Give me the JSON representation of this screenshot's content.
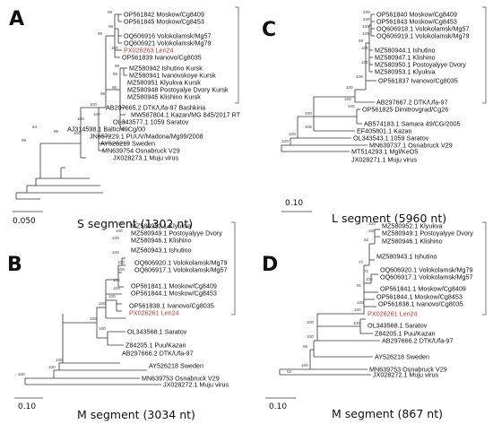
{
  "panels": [
    {
      "id": "A",
      "letter": "A",
      "title": "S segment (1302 nt)",
      "scale": "0.050",
      "taxa": [
        {
          "label": "OP561842 Moskow/Cg8409",
          "hl": false
        },
        {
          "label": "OP561845 Moskow/Cg8453",
          "hl": false
        },
        {
          "label": "OQ606916 Volokolamsk/Mg57",
          "hl": false
        },
        {
          "label": "OQ606921 Volokolamsk/Mg79",
          "hl": false
        },
        {
          "label": "PX026263 Len24",
          "hl": true
        },
        {
          "label": "OP561839 Ivanovo/Cg8035",
          "hl": false
        },
        {
          "label": "MZ580942 Ishutino Kursk",
          "hl": false
        },
        {
          "label": "MZ580941 Ivanovskoye Kursk",
          "hl": false
        },
        {
          "label": "MZ580951 Klyukva Kursk",
          "hl": false
        },
        {
          "label": "MZ580948 Postoyalye Dvory Kursk",
          "hl": false
        },
        {
          "label": "MZ580945 Klishino Kursk",
          "hl": false
        },
        {
          "label": "AB297665.2 DTK/Ufa-97 Bashkiria",
          "hl": false
        },
        {
          "label": "MW587804.1 Kazan/MG 845/2017 RT",
          "hl": false
        },
        {
          "label": "OL343577.1 1059 Saratov",
          "hl": false
        },
        {
          "label": "AJ314598.1 Baltic/49Cg/00",
          "hl": false
        },
        {
          "label": "JN657229.1 PUUV/Madona/Mg99/2008",
          "hl": false
        },
        {
          "label": "AY526219 Sweden",
          "hl": false
        },
        {
          "label": "MN639754 Osnabruck V29",
          "hl": false
        },
        {
          "label": "JX028273.1 Muju virus",
          "hl": false
        }
      ],
      "bootstraps": [
        "99",
        "99",
        "99",
        "100",
        "99",
        "99",
        "95",
        "99",
        "100",
        "100",
        "100",
        "100",
        "86",
        "64",
        "99"
      ]
    },
    {
      "id": "C",
      "letter": "C",
      "title": "L segment (5960 nt)",
      "scale": "0.10",
      "taxa": [
        {
          "label": "OP561840 Moskow/Cg8409",
          "hl": false
        },
        {
          "label": "OP561843 Moskow/Cg8453",
          "hl": false
        },
        {
          "label": "OQ606918.1 Volokolamsk/Mg57",
          "hl": false
        },
        {
          "label": "OQ606919.1 Volokolamsk/Mg79",
          "hl": false
        },
        {
          "label": "MZ580944.1 Ishutino",
          "hl": false
        },
        {
          "label": "MZ580947.1 Klishino",
          "hl": false
        },
        {
          "label": "MZ580950.1 Postoyalyye Dvory",
          "hl": false
        },
        {
          "label": "MZ580953.1 Klyukva",
          "hl": false
        },
        {
          "label": "OP561837 Ivanovo/Cg8035",
          "hl": false
        },
        {
          "label": "AB297667.2 DTK/Ufa-97",
          "hl": false
        },
        {
          "label": "OP561825 Dimitrovgrad/Cg26",
          "hl": false
        },
        {
          "label": "AB574183.1 Samara 49/CG/2005",
          "hl": false
        },
        {
          "label": "EF405801.1 Kazan",
          "hl": false
        },
        {
          "label": "OL343543.1 1059 Saratov",
          "hl": false
        },
        {
          "label": "MN639737.1 Osnabruck V29",
          "hl": false
        },
        {
          "label": "MT514293.1 Mgl/KeO5",
          "hl": false
        },
        {
          "label": "JX028271.1 Muju virus",
          "hl": false
        }
      ],
      "bootstraps": [
        "100",
        "100",
        "100",
        "100",
        "99",
        "100",
        "100",
        "100",
        "100",
        "100",
        "100",
        "100",
        "100",
        "100",
        "100"
      ]
    },
    {
      "id": "B",
      "letter": "B",
      "title": "M segment (3034 nt)",
      "scale": "0.10",
      "taxa": [
        {
          "label": "MZ580952.1 Klyukva",
          "hl": false
        },
        {
          "label": "MZ580949.1 Postoyalyye Dvory",
          "hl": false
        },
        {
          "label": "MZ580946.1 Klishino",
          "hl": false
        },
        {
          "label": "MZ580943.1 Ishutino",
          "hl": false
        },
        {
          "label": "OQ606920.1 Volokolamsk/Mg79",
          "hl": false
        },
        {
          "label": "OQ606917.1 Volokolamsk/Mg57",
          "hl": false
        },
        {
          "label": "OP561841.1 Moskow/Cg8409",
          "hl": false
        },
        {
          "label": "OP561844.1 Moskow/Cg8453",
          "hl": false
        },
        {
          "label": "OP561838.1 Ivanovo/Cg8035",
          "hl": false
        },
        {
          "label": "PX026261 Len24",
          "hl": true
        },
        {
          "label": "OL343568.1 Saratov",
          "hl": false
        },
        {
          "label": "Z84205.1 Puu/Kazan",
          "hl": false
        },
        {
          "label": "AB297666.2 DTK/Ufa-97",
          "hl": false
        },
        {
          "label": "AY526218 Sweden",
          "hl": false
        },
        {
          "label": "MN639753 Osnabruck V29",
          "hl": false
        },
        {
          "label": "JX028272.1 Muju virus",
          "hl": false
        }
      ],
      "bootstraps": [
        "100",
        "100",
        "100",
        "100",
        "100",
        "100",
        "100",
        "100",
        "100",
        "100",
        "100",
        "100",
        "100",
        "100",
        "100"
      ]
    },
    {
      "id": "D",
      "letter": "D",
      "title": "M segment (867 nt)",
      "scale": "0.10",
      "taxa": [
        {
          "label": "MZ580952.1 Klyukva",
          "hl": false
        },
        {
          "label": "MZ580949.1 Postoyalyye Dvory",
          "hl": false
        },
        {
          "label": "MZ580946.1 Klishino",
          "hl": false
        },
        {
          "label": "MZ580943.1 Ishutino",
          "hl": false
        },
        {
          "label": "OQ606920.1 Volokolamsk/Mg79",
          "hl": false
        },
        {
          "label": "OQ606917.1 Volokolamsk/Mg57",
          "hl": false
        },
        {
          "label": "OP561841.1 Moskow/Cg8409",
          "hl": false
        },
        {
          "label": "OP561844.1 Moskow/Cg8453",
          "hl": false
        },
        {
          "label": "OP561838.1 Ivanovo/Cg8035",
          "hl": false
        },
        {
          "label": "PX026261 Len24",
          "hl": true
        },
        {
          "label": "OL343568.1 Saratov",
          "hl": false
        },
        {
          "label": "Z84205.1 Puu/Kazan",
          "hl": false
        },
        {
          "label": "AB297666.2 DTK/Ufa-97",
          "hl": false
        },
        {
          "label": "AY526218 Sweden",
          "hl": false
        },
        {
          "label": "MN639753 Osnabruck V29",
          "hl": false
        },
        {
          "label": "JX028272.1 Muju virus",
          "hl": false
        }
      ],
      "bootstraps": [
        "100",
        "100",
        "92",
        "77",
        "71",
        "100",
        "91",
        "100",
        "100",
        "100",
        "100",
        "100",
        "96",
        "100",
        "52"
      ]
    }
  ],
  "colors": {
    "highlight": "#c0392b",
    "text": "#111111",
    "branch": "#333333"
  }
}
